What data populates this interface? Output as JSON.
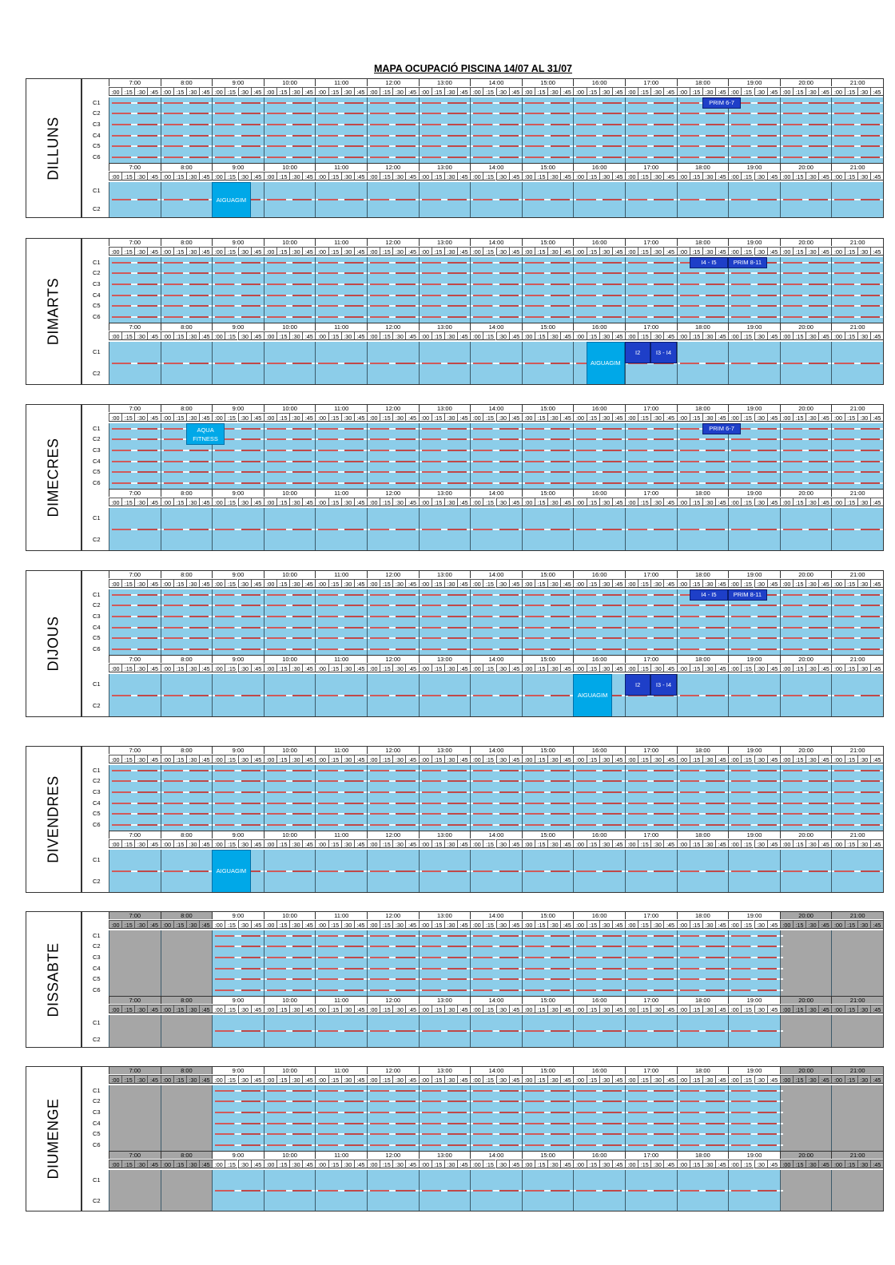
{
  "title": "MAPA OCUPACIÓ PISCINA 14/07 AL 31/07",
  "hours": [
    "7:00",
    "8:00",
    "9:00",
    "10:00",
    "11:00",
    "12:00",
    "13:00",
    "14:00",
    "15:00",
    "16:00",
    "17:00",
    "18:00",
    "19:00",
    "20:00",
    "21:00"
  ],
  "quarters": [
    ":00",
    ":15",
    ":30",
    ":45"
  ],
  "main_lanes": [
    "C1",
    "C2",
    "C3",
    "C4",
    "C5",
    "C6"
  ],
  "small_lanes": [
    "C1",
    "C2"
  ],
  "colors": {
    "water": "#8ccde9",
    "closed": "#a6a6a6",
    "dark_event": "#1e3fc8",
    "light_event": "#00a8e8"
  },
  "days": [
    {
      "name": "DILLUNS",
      "weekend": false,
      "main_events": [
        {
          "label": "PRIM 6-7",
          "start": "18:30",
          "end": "19:15",
          "lanes": [
            1,
            1
          ],
          "style": "dark"
        }
      ],
      "small_events": [
        {
          "label": "AIGUAGIM",
          "start": "9:00",
          "end": "9:45",
          "lanes": [
            1,
            2
          ],
          "style": "light"
        }
      ]
    },
    {
      "name": "DIMARTS",
      "weekend": false,
      "main_events": [
        {
          "label": "I4 - I5",
          "start": "18:15",
          "end": "19:00",
          "lanes": [
            1,
            1
          ],
          "style": "dark"
        },
        {
          "label": "PRIM 8-11",
          "start": "19:00",
          "end": "19:45",
          "lanes": [
            1,
            1
          ],
          "style": "dark"
        }
      ],
      "small_events": [
        {
          "label": "AIGUAGIM",
          "start": "16:15",
          "end": "17:00",
          "lanes": [
            1,
            2
          ],
          "style": "light"
        },
        {
          "label": "I2",
          "start": "17:00",
          "end": "17:30",
          "lanes": [
            1,
            1
          ],
          "style": "dark"
        },
        {
          "label": "I3 - I4",
          "start": "17:30",
          "end": "18:00",
          "lanes": [
            1,
            1
          ],
          "style": "dark"
        }
      ]
    },
    {
      "name": "DIMECRES",
      "weekend": false,
      "main_events": [
        {
          "label": "AQUA FITNESS",
          "start": "8:30",
          "end": "9:15",
          "lanes": [
            1,
            2
          ],
          "style": "light"
        },
        {
          "label": "PRIM 6-7",
          "start": "18:30",
          "end": "19:15",
          "lanes": [
            1,
            1
          ],
          "style": "dark"
        }
      ],
      "small_events": []
    },
    {
      "name": "DIJOUS",
      "weekend": false,
      "main_events": [
        {
          "label": "I4 - I5",
          "start": "18:15",
          "end": "19:00",
          "lanes": [
            1,
            1
          ],
          "style": "dark"
        },
        {
          "label": "PRIM 8-11",
          "start": "19:00",
          "end": "19:45",
          "lanes": [
            1,
            1
          ],
          "style": "dark"
        }
      ],
      "small_events": [
        {
          "label": "AIGUAGIM",
          "start": "16:00",
          "end": "16:45",
          "lanes": [
            1,
            2
          ],
          "style": "light"
        },
        {
          "label": "I2",
          "start": "17:00",
          "end": "17:30",
          "lanes": [
            1,
            1
          ],
          "style": "dark"
        },
        {
          "label": "I3 - I4",
          "start": "17:30",
          "end": "18:00",
          "lanes": [
            1,
            1
          ],
          "style": "dark"
        }
      ]
    },
    {
      "name": "DIVENDRES",
      "weekend": false,
      "main_events": [],
      "small_events": [
        {
          "label": "AIGUAGIM",
          "start": "9:00",
          "end": "9:45",
          "lanes": [
            1,
            2
          ],
          "style": "light"
        }
      ]
    },
    {
      "name": "DISSABTE",
      "weekend": true,
      "main_events": [],
      "small_events": []
    },
    {
      "name": "DIUMENGE",
      "weekend": true,
      "main_events": [],
      "small_events": []
    }
  ]
}
